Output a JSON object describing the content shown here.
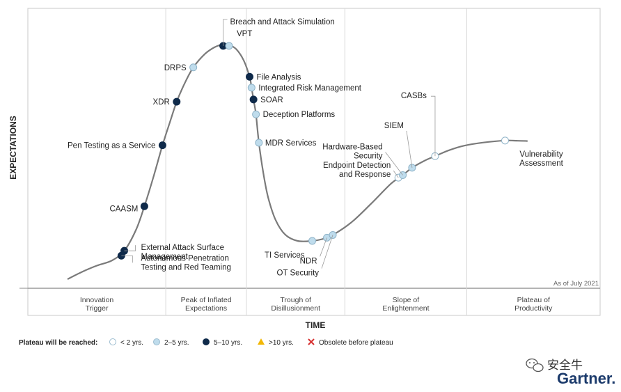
{
  "chart_data": {
    "type": "scatter",
    "title": "",
    "xlabel": "TIME",
    "ylabel": "EXPECTATIONS",
    "as_of": "As of July 2021",
    "phases": [
      {
        "lines": [
          "Innovation",
          "Trigger"
        ]
      },
      {
        "lines": [
          "Peak of Inflated",
          "Expectations"
        ]
      },
      {
        "lines": [
          "Trough of",
          "Disillusionment"
        ]
      },
      {
        "lines": [
          "Slope of",
          "Enlightenment"
        ]
      },
      {
        "lines": [
          "Plateau of",
          "Productivity"
        ]
      }
    ],
    "phase_boundaries": [
      0,
      0.241,
      0.382,
      0.554,
      0.767,
      1
    ],
    "legend": {
      "title": "Plateau will be reached:",
      "items": [
        {
          "key": "lt2",
          "label": "< 2 yrs.",
          "color": "#ffffff"
        },
        {
          "key": "2to5",
          "label": "2–5 yrs.",
          "color": "#bfdcec"
        },
        {
          "key": "5to10",
          "label": "5–10 yrs.",
          "color": "#0f2a4a"
        },
        {
          "key": "gt10",
          "label": ">10 yrs.",
          "color": "#f2b705"
        },
        {
          "key": "obsolete",
          "label": "Obsolete before plateau",
          "color": "#d62e2e"
        }
      ]
    },
    "points": [
      {
        "name": "Autonomous Penetration Testing and Red Teaming",
        "lines": [
          "Autonomous Penetration",
          "Testing and Red Teaming"
        ],
        "x": 0.11,
        "y": 0.095,
        "cat": "5to10"
      },
      {
        "name": "External Attack Surface Management",
        "lines": [
          "External Attack Surface",
          "Management"
        ],
        "x": 0.116,
        "y": 0.115,
        "cat": "5to10"
      },
      {
        "name": "CAASM",
        "lines": [
          "CAASM"
        ],
        "x": 0.157,
        "y": 0.295,
        "cat": "5to10"
      },
      {
        "name": "Pen Testing as a Service",
        "lines": [
          "Pen Testing as a Service"
        ],
        "x": 0.194,
        "y": 0.542,
        "cat": "5to10"
      },
      {
        "name": "XDR",
        "lines": [
          "XDR"
        ],
        "x": 0.223,
        "y": 0.718,
        "cat": "5to10"
      },
      {
        "name": "DRPS",
        "lines": [
          "DRPS"
        ],
        "x": 0.257,
        "y": 0.857,
        "cat": "2to5"
      },
      {
        "name": "Breach and Attack Simulation",
        "lines": [
          "Breach and Attack Simulation"
        ],
        "x": 0.318,
        "y": 0.944,
        "cat": "5to10"
      },
      {
        "name": "VPT",
        "lines": [
          "VPT"
        ],
        "x": 0.33,
        "y": 0.944,
        "cat": "2to5"
      },
      {
        "name": "File Analysis",
        "lines": [
          "File Analysis"
        ],
        "x": 0.372,
        "y": 0.819,
        "cat": "5to10"
      },
      {
        "name": "Integrated Risk Management",
        "lines": [
          "Integrated Risk Management"
        ],
        "x": 0.376,
        "y": 0.775,
        "cat": "2to5"
      },
      {
        "name": "SOAR",
        "lines": [
          "SOAR"
        ],
        "x": 0.38,
        "y": 0.727,
        "cat": "5to10"
      },
      {
        "name": "Deception Platforms",
        "lines": [
          "Deception Platforms"
        ],
        "x": 0.385,
        "y": 0.667,
        "cat": "2to5"
      },
      {
        "name": "MDR Services",
        "lines": [
          "MDR Services"
        ],
        "x": 0.391,
        "y": 0.552,
        "cat": "2to5"
      },
      {
        "name": "TI Services",
        "lines": [
          "TI Services"
        ],
        "x": 0.5,
        "y": 0.155,
        "cat": "2to5"
      },
      {
        "name": "NDR",
        "lines": [
          "NDR"
        ],
        "x": 0.53,
        "y": 0.168,
        "cat": "2to5"
      },
      {
        "name": "OT Security",
        "lines": [
          "OT Security"
        ],
        "x": 0.542,
        "y": 0.179,
        "cat": "2to5"
      },
      {
        "name": "Endpoint Detection and Response",
        "lines": [
          "Endpoint Detection",
          "and Response"
        ],
        "x": 0.676,
        "y": 0.411,
        "cat": "lt2"
      },
      {
        "name": "Hardware-Based Security",
        "lines": [
          "Hardware-Based",
          "Security"
        ],
        "x": 0.685,
        "y": 0.421,
        "cat": "2to5"
      },
      {
        "name": "SIEM",
        "lines": [
          "SIEM"
        ],
        "x": 0.704,
        "y": 0.451,
        "cat": "2to5"
      },
      {
        "name": "CASBs",
        "lines": [
          "CASBs"
        ],
        "x": 0.751,
        "y": 0.498,
        "cat": "lt2"
      },
      {
        "name": "Vulnerability Assessment",
        "lines": [
          "Vulnerability",
          "Assessment"
        ],
        "x": 0.894,
        "y": 0.561,
        "cat": "lt2"
      }
    ],
    "curve": [
      [
        0.0,
        0.0
      ],
      [
        0.03,
        0.03
      ],
      [
        0.06,
        0.055
      ],
      [
        0.09,
        0.075
      ],
      [
        0.116,
        0.115
      ],
      [
        0.14,
        0.2
      ],
      [
        0.157,
        0.295
      ],
      [
        0.175,
        0.41
      ],
      [
        0.194,
        0.542
      ],
      [
        0.21,
        0.64
      ],
      [
        0.223,
        0.718
      ],
      [
        0.24,
        0.795
      ],
      [
        0.257,
        0.857
      ],
      [
        0.28,
        0.91
      ],
      [
        0.3,
        0.938
      ],
      [
        0.318,
        0.95
      ],
      [
        0.33,
        0.948
      ],
      [
        0.345,
        0.93
      ],
      [
        0.36,
        0.885
      ],
      [
        0.372,
        0.819
      ],
      [
        0.376,
        0.775
      ],
      [
        0.38,
        0.727
      ],
      [
        0.385,
        0.667
      ],
      [
        0.391,
        0.552
      ],
      [
        0.4,
        0.43
      ],
      [
        0.41,
        0.33
      ],
      [
        0.425,
        0.24
      ],
      [
        0.445,
        0.18
      ],
      [
        0.47,
        0.155
      ],
      [
        0.5,
        0.155
      ],
      [
        0.52,
        0.162
      ],
      [
        0.542,
        0.179
      ],
      [
        0.58,
        0.23
      ],
      [
        0.62,
        0.305
      ],
      [
        0.66,
        0.385
      ],
      [
        0.685,
        0.421
      ],
      [
        0.704,
        0.451
      ],
      [
        0.73,
        0.48
      ],
      [
        0.751,
        0.498
      ],
      [
        0.78,
        0.522
      ],
      [
        0.81,
        0.54
      ],
      [
        0.85,
        0.553
      ],
      [
        0.894,
        0.561
      ],
      [
        0.92,
        0.56
      ],
      [
        0.94,
        0.559
      ]
    ]
  },
  "watermark": {
    "cn_text": "安全牛",
    "brand": "Gartner."
  }
}
